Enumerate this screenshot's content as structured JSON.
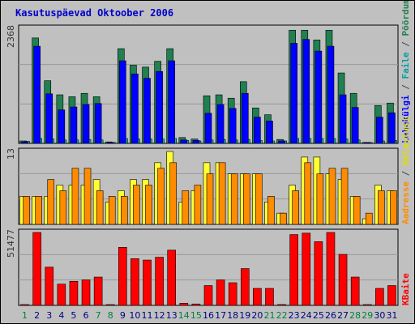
{
  "title": "Kasutuspäevad Oktoober 2006",
  "colors": {
    "background": "#c0c0c0",
    "plot_bg": "#c0c0c0",
    "grid": "#999999",
    "title": "#0000cc",
    "pages": "#0000ff",
    "hits": "#208050",
    "files": "#00c0c0",
    "visits": "#ffff33",
    "sites": "#ff8c00",
    "kbytes": "#ff0000",
    "weekday_label": "#000080",
    "weekend_label": "#008040"
  },
  "chart_data": [
    {
      "type": "bar",
      "name": "hits-pages-files",
      "ymax_label": "2368",
      "ylim": [
        0,
        2368
      ],
      "grid": true,
      "categories": [
        "1",
        "2",
        "3",
        "4",
        "5",
        "6",
        "7",
        "8",
        "9",
        "10",
        "11",
        "12",
        "13",
        "14",
        "15",
        "16",
        "17",
        "18",
        "19",
        "20",
        "21",
        "22",
        "23",
        "24",
        "25",
        "26",
        "27",
        "28",
        "29",
        "30",
        "31"
      ],
      "series": [
        {
          "name": "Pöördumisi",
          "color": "#208050",
          "values": [
            50,
            2170,
            1290,
            1000,
            960,
            1030,
            960,
            30,
            1950,
            1610,
            1570,
            1690,
            1950,
            120,
            90,
            980,
            1000,
            930,
            1270,
            730,
            590,
            80,
            2330,
            2330,
            2130,
            2330,
            1450,
            1030,
            20,
            780,
            830
          ]
        },
        {
          "name": "Faile",
          "color": "#00c0c0",
          "values": [
            40,
            100,
            90,
            70,
            70,
            80,
            70,
            20,
            100,
            90,
            90,
            90,
            100,
            60,
            50,
            70,
            80,
            70,
            80,
            60,
            50,
            50,
            100,
            100,
            100,
            100,
            90,
            70,
            10,
            50,
            60
          ]
        },
        {
          "name": "Lehekülgi",
          "color": "#0000ff",
          "values": [
            30,
            2000,
            1020,
            690,
            750,
            800,
            820,
            20,
            1700,
            1430,
            1340,
            1480,
            1700,
            70,
            60,
            620,
            800,
            720,
            1030,
            540,
            460,
            50,
            2060,
            2140,
            1900,
            2000,
            1000,
            740,
            10,
            540,
            630
          ]
        }
      ]
    },
    {
      "type": "bar",
      "name": "visits-sites",
      "ymax_label": "13",
      "ylim": [
        0,
        13
      ],
      "grid": true,
      "categories": [
        "1",
        "2",
        "3",
        "4",
        "5",
        "6",
        "7",
        "8",
        "9",
        "10",
        "11",
        "12",
        "13",
        "14",
        "15",
        "16",
        "17",
        "18",
        "19",
        "20",
        "21",
        "22",
        "23",
        "24",
        "25",
        "26",
        "27",
        "28",
        "29",
        "30",
        "31"
      ],
      "series": [
        {
          "name": "Külastusi",
          "color": "#ffff33",
          "values": [
            5,
            5,
            5,
            7,
            7,
            7,
            8,
            4,
            6,
            8,
            8,
            11,
            13,
            4,
            6,
            11,
            11,
            9,
            9,
            9,
            4,
            2,
            7,
            12,
            12,
            9,
            8,
            5,
            1,
            7,
            6
          ]
        },
        {
          "name": "Aadresse",
          "color": "#ff8c00",
          "values": [
            5,
            5,
            8,
            6,
            10,
            10,
            6,
            5,
            5,
            7,
            7,
            10,
            11,
            6,
            7,
            9,
            11,
            9,
            9,
            9,
            5,
            2,
            6,
            11,
            9,
            10,
            10,
            5,
            2,
            6,
            6
          ]
        }
      ]
    },
    {
      "type": "bar",
      "name": "kbytes",
      "ymax_label": "51477",
      "ylim": [
        0,
        51477
      ],
      "grid": true,
      "categories": [
        "1",
        "2",
        "3",
        "4",
        "5",
        "6",
        "7",
        "8",
        "9",
        "10",
        "11",
        "12",
        "13",
        "14",
        "15",
        "16",
        "17",
        "18",
        "19",
        "20",
        "21",
        "22",
        "23",
        "24",
        "25",
        "26",
        "27",
        "28",
        "29",
        "30",
        "31"
      ],
      "series": [
        {
          "name": "KBaite",
          "color": "#ff0000",
          "values": [
            100,
            51477,
            27000,
            15000,
            17000,
            18000,
            20000,
            100,
            41000,
            33000,
            32000,
            34000,
            39000,
            1500,
            1000,
            14000,
            18000,
            16000,
            26000,
            12000,
            12000,
            600,
            50000,
            51000,
            45000,
            51477,
            36000,
            20000,
            100,
            12000,
            14000
          ]
        }
      ]
    }
  ],
  "day_labels": {
    "weekend": [
      "1",
      "7",
      "8",
      "14",
      "15",
      "21",
      "22",
      "28",
      "29"
    ]
  },
  "right_labels": {
    "top": [
      {
        "text": "Lehekülgi",
        "color": "#0000ff"
      },
      {
        "text": " / ",
        "color": "#444444"
      },
      {
        "text": "Faile",
        "color": "#00a0a0"
      },
      {
        "text": " / ",
        "color": "#444444"
      },
      {
        "text": "Pöördumisi",
        "color": "#208050"
      }
    ],
    "middle": [
      {
        "text": "Aadresse",
        "color": "#ff8c00"
      },
      {
        "text": " / ",
        "color": "#444444"
      },
      {
        "text": "Külastusi",
        "color": "#dddd00"
      }
    ],
    "bottom": [
      {
        "text": "KBaite",
        "color": "#ff0000"
      }
    ]
  }
}
